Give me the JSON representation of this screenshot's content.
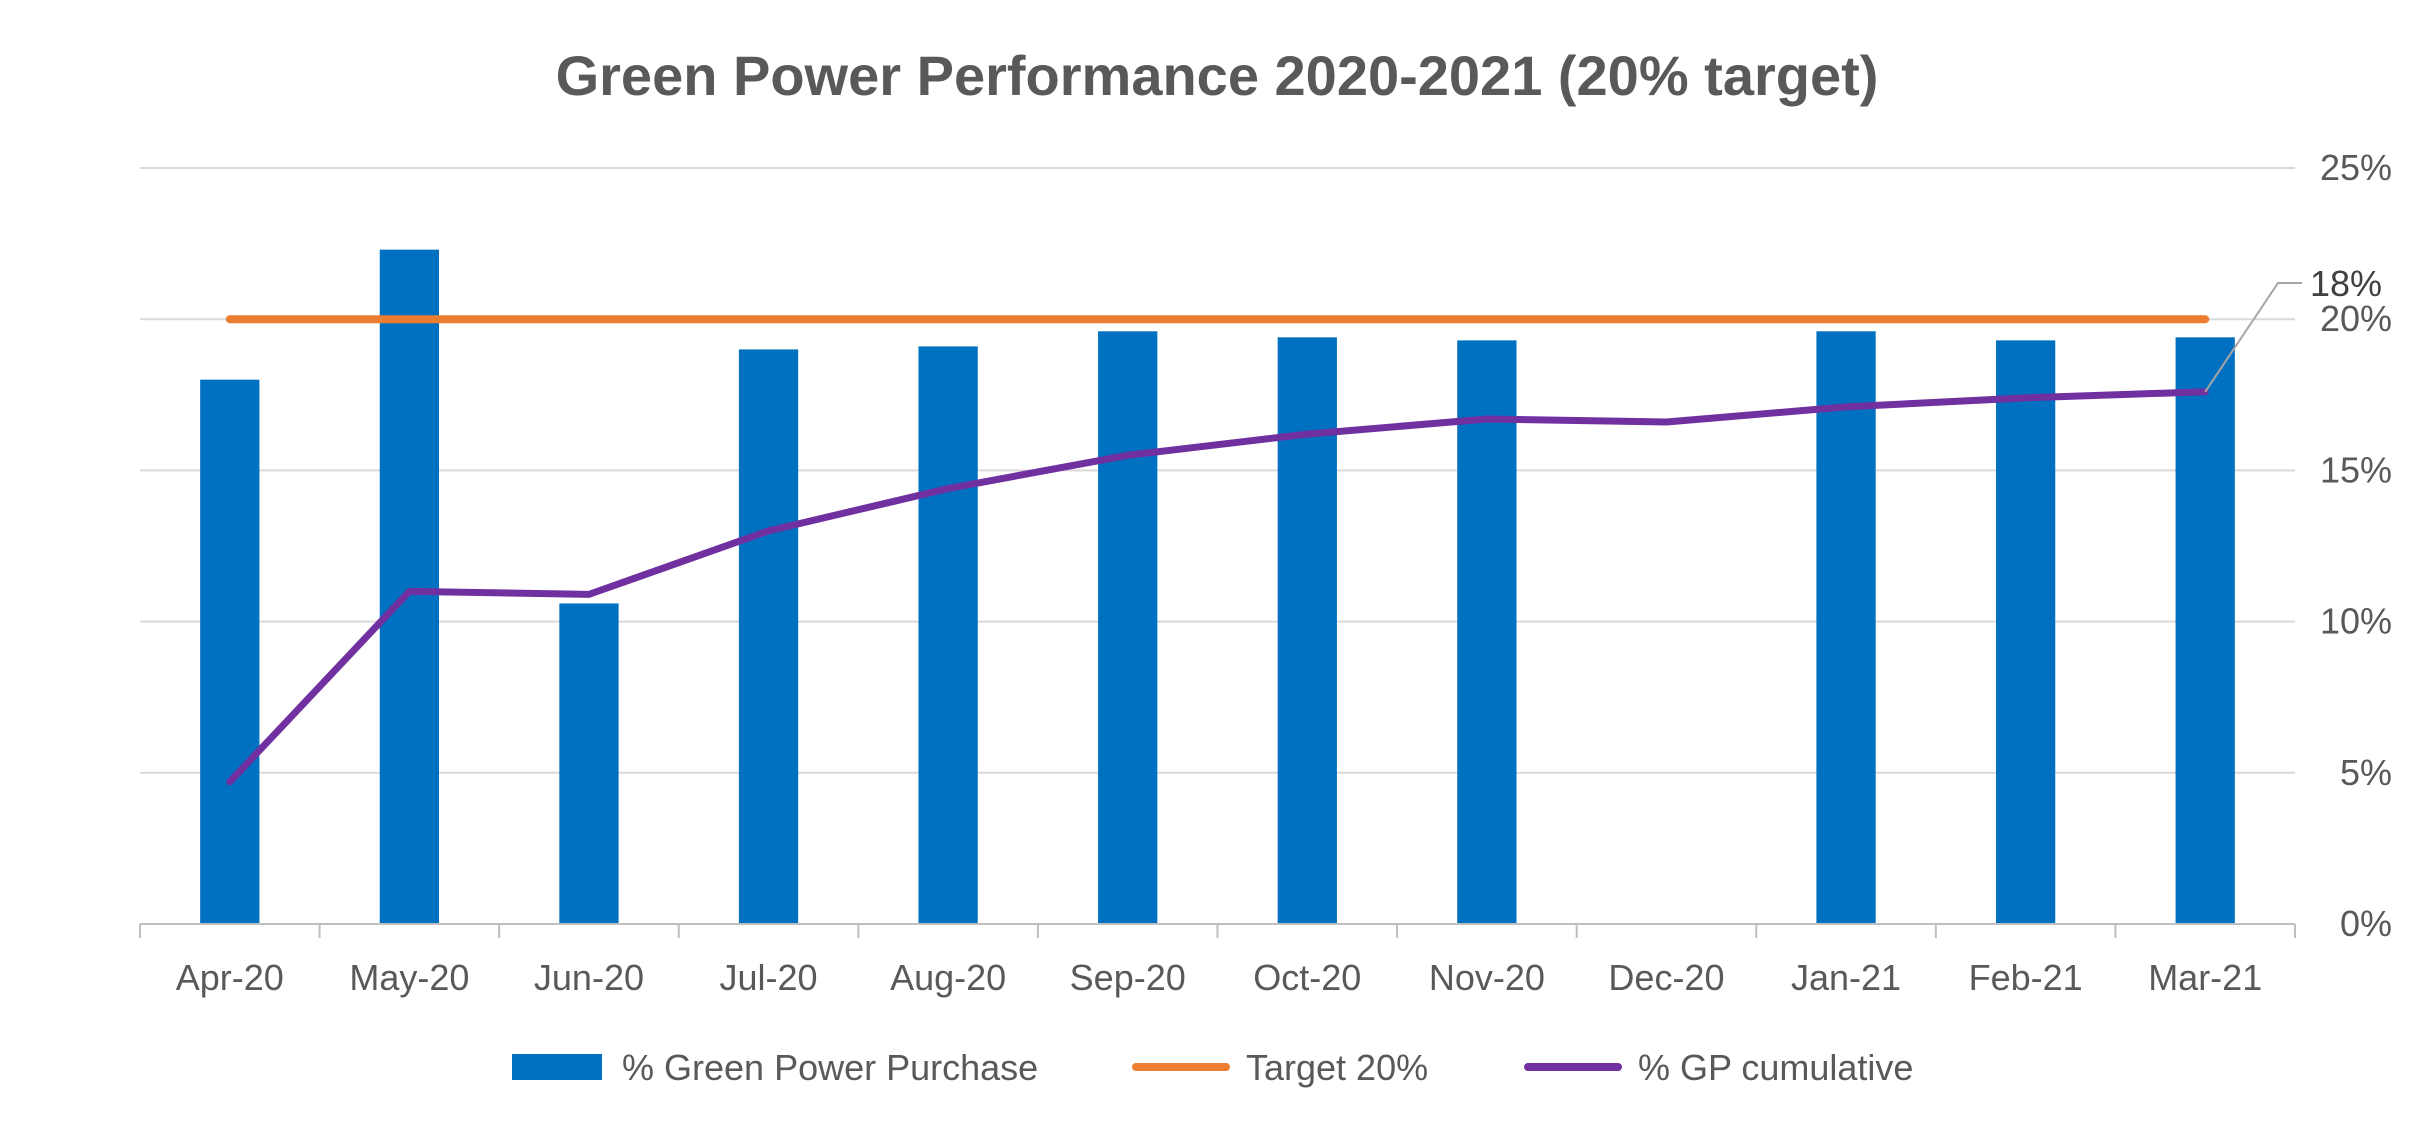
{
  "chart_data": {
    "type": "bar",
    "title": "Green Power Performance 2020-2021 (20% target)",
    "xlabel": "",
    "ylabel": "",
    "categories": [
      "Apr-20",
      "May-20",
      "Jun-20",
      "Jul-20",
      "Aug-20",
      "Sep-20",
      "Oct-20",
      "Nov-20",
      "Dec-20",
      "Jan-21",
      "Feb-21",
      "Mar-21"
    ],
    "y_axis": {
      "position": "right",
      "ylim": [
        0,
        25
      ],
      "ticks": [
        0,
        5,
        10,
        15,
        20,
        25
      ],
      "tick_labels": [
        "0%",
        "5%",
        "10%",
        "15%",
        "20%",
        "25%"
      ]
    },
    "grid": true,
    "legend_position": "bottom",
    "series": [
      {
        "name": "% Green Power Purchase",
        "kind": "bar",
        "color": "#0070C0",
        "values": [
          18.0,
          22.3,
          10.6,
          19.0,
          19.1,
          19.6,
          19.4,
          19.3,
          null,
          19.6,
          19.3,
          19.4
        ]
      },
      {
        "name": "Target 20%",
        "kind": "line",
        "color": "#ED7D31",
        "values": [
          20,
          20,
          20,
          20,
          20,
          20,
          20,
          20,
          20,
          20,
          20,
          20
        ]
      },
      {
        "name": "% GP cumulative",
        "kind": "line",
        "color": "#7030A0",
        "values": [
          4.7,
          11.0,
          10.9,
          13.0,
          14.4,
          15.5,
          16.2,
          16.7,
          16.6,
          17.1,
          17.4,
          17.6
        ]
      }
    ],
    "annotations": [
      {
        "text": "18%",
        "series": "% GP cumulative",
        "category": "Mar-21"
      }
    ]
  }
}
